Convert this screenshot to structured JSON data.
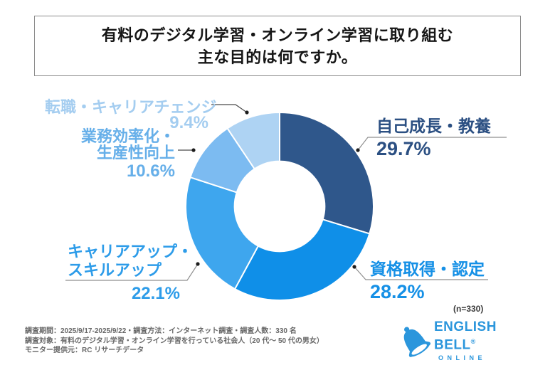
{
  "title": {
    "line1": "有料のデジタル学習・オンライン学習に取り組む",
    "line2": "主な目的は何ですか。"
  },
  "chart_data": {
    "type": "pie",
    "subtype": "donut",
    "title": "有料のデジタル学習・オンライン学習に取り組む主な目的は何ですか。",
    "start_angle_deg": 0,
    "direction": "clockwise",
    "inner_radius_ratio": 0.48,
    "sample_note": "(n=330)",
    "segments": [
      {
        "label": "自己成長・教養",
        "value": 29.7,
        "display": "29.7%",
        "color": "#2f578b",
        "text_color": "#2b4f82"
      },
      {
        "label": "資格取得・認定",
        "value": 28.2,
        "display": "28.2%",
        "color": "#0f8fe8",
        "text_color": "#1590e6"
      },
      {
        "label": "キャリアアップ・スキルアップ",
        "value": 22.1,
        "display": "22.1%",
        "color": "#3ea6ee",
        "text_color": "#2d9ce9"
      },
      {
        "label": "業務効率化・生産性向上",
        "value": 10.6,
        "display": "10.6%",
        "color": "#7cbbf1",
        "text_color": "#66afe9"
      },
      {
        "label": "転職・キャリアチェンジ",
        "value": 9.4,
        "display": "9.4%",
        "color": "#aed3f3",
        "text_color": "#a4cdf0"
      }
    ]
  },
  "callouts": {
    "self_growth": {
      "name": "自己成長・教養",
      "pct": "29.7%"
    },
    "cert": {
      "name": "資格取得・認定",
      "pct": "28.2%"
    },
    "career": {
      "name_line1": "キャリアアップ・",
      "name_line2": "スキルアップ",
      "pct": "22.1%"
    },
    "efficiency": {
      "name_line1": "業務効率化・",
      "name_line2": "生産性向上",
      "pct": "10.6%"
    },
    "jobchange": {
      "name": "転職・キャリアチェンジ",
      "pct": "9.4%"
    }
  },
  "footer": {
    "line1": "調査期間：2025/9/17-2025/9/22・調査方法：インターネット調査・調査人数：330 名",
    "line2": "調査対象：有料のデジタル学習・オンライン学習を行っている社会人（20 代～ 50 代の男女）",
    "line3": "モニター提供元：RC リサーチデータ"
  },
  "logo": {
    "name": "ENGLISH BELL",
    "reg": "®",
    "sub": "ONLINE",
    "color": "#2b96dc"
  }
}
